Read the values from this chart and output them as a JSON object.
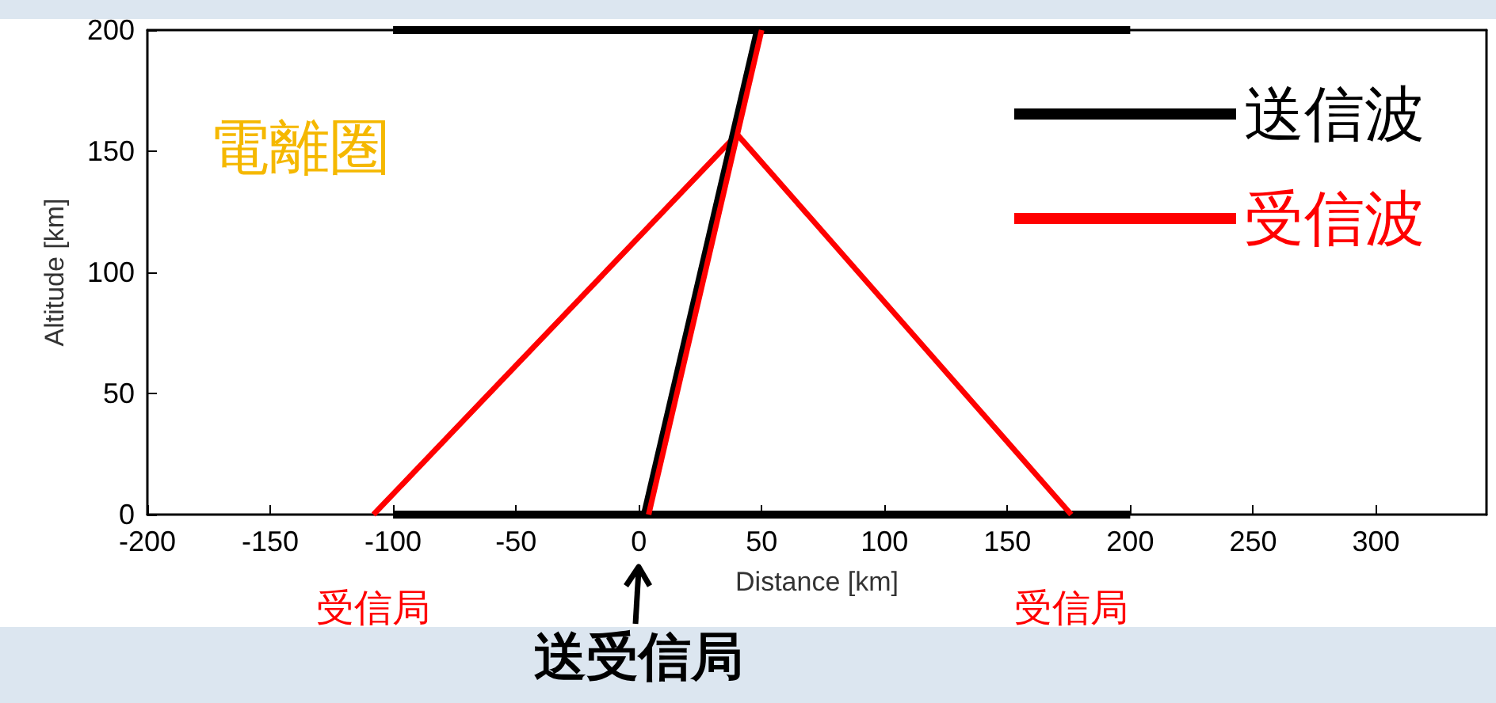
{
  "chart_data": {
    "type": "line",
    "xlabel": "Distance [km]",
    "ylabel": "Altitude [km]",
    "xlim": [
      -200,
      345
    ],
    "xticks": [
      -200,
      -150,
      -100,
      -50,
      0,
      50,
      100,
      150,
      200,
      250,
      300
    ],
    "ylim": [
      0,
      200
    ],
    "yticks": [
      0,
      50,
      100,
      150,
      200
    ],
    "grid": false,
    "legend": "top right",
    "marker": "none",
    "line_style": "solid",
    "series": [
      {
        "name": "送信波",
        "color": "#000000",
        "x": [
          2,
          48
        ],
        "values": [
          0,
          200
        ]
      },
      {
        "color": "#000000",
        "x": [
          -100,
          200
        ],
        "values": [
          200,
          200
        ]
      },
      {
        "color": "#000000",
        "x": [
          -100,
          200
        ],
        "values": [
          0,
          0
        ]
      },
      {
        "name": "受信波",
        "color": "#ff0000",
        "x": [
          4,
          50
        ],
        "values": [
          0,
          200
        ]
      },
      {
        "color": "#ff0000",
        "x": [
          -108,
          40,
          176
        ],
        "values": [
          0,
          157,
          0
        ]
      }
    ],
    "annotations": [
      "電離圏",
      {
        "text": "受信局",
        "x": -108,
        "y": 0
      },
      {
        "text": "受信局",
        "x": 176,
        "y": 0
      },
      {
        "text": "送受信局",
        "x": 0,
        "y": 0
      }
    ]
  }
}
